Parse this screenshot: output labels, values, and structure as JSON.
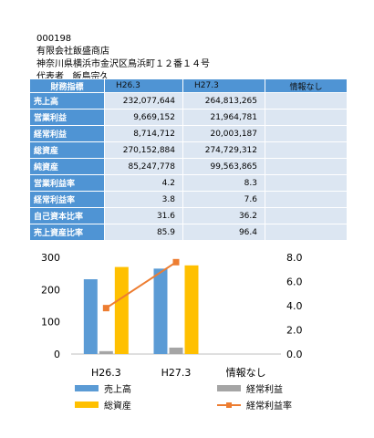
{
  "header": {
    "code": "000198",
    "company": "有限会社飯盛商店",
    "address": "神奈川県横浜市金沢区鳥浜町１２番１４号",
    "rep_label": "代表者",
    "rep_name": "飯島宗久"
  },
  "table": {
    "columns": [
      "財務指標",
      "H26.3",
      "H27.3",
      "情報なし"
    ],
    "rows": [
      {
        "label": "売上高",
        "values": [
          "232,077,644",
          "264,813,265",
          ""
        ]
      },
      {
        "label": "営業利益",
        "values": [
          "9,669,152",
          "21,964,781",
          ""
        ]
      },
      {
        "label": "経常利益",
        "values": [
          "8,714,712",
          "20,003,187",
          ""
        ]
      },
      {
        "label": "総資産",
        "values": [
          "270,152,884",
          "274,729,312",
          ""
        ]
      },
      {
        "label": "純資産",
        "values": [
          "85,247,778",
          "99,563,865",
          ""
        ]
      },
      {
        "label": "営業利益率",
        "values": [
          "4.2",
          "8.3",
          ""
        ]
      },
      {
        "label": "経常利益率",
        "values": [
          "3.8",
          "7.6",
          ""
        ]
      },
      {
        "label": "自己資本比率",
        "values": [
          "31.6",
          "36.2",
          ""
        ]
      },
      {
        "label": "売上資産比率",
        "values": [
          "85.9",
          "96.4",
          ""
        ]
      }
    ]
  },
  "chart_data": {
    "type": "bar",
    "categories": [
      "H26.3",
      "H27.3",
      "情報なし"
    ],
    "series": [
      {
        "name": "売上高",
        "kind": "bar",
        "axis": "left",
        "color": "#5b9bd5",
        "values": [
          232,
          265,
          null
        ]
      },
      {
        "name": "経常利益",
        "kind": "bar",
        "axis": "left",
        "color": "#a5a5a5",
        "values": [
          9,
          20,
          null
        ]
      },
      {
        "name": "総資産",
        "kind": "bar",
        "axis": "left",
        "color": "#ffc000",
        "values": [
          270,
          275,
          null
        ]
      },
      {
        "name": "経常利益率",
        "kind": "line",
        "axis": "right",
        "color": "#ed7d31",
        "values": [
          3.8,
          7.6,
          null
        ]
      }
    ],
    "y_left": {
      "min": 0,
      "max": 300,
      "ticks": [
        "0",
        "100",
        "200",
        "300"
      ]
    },
    "y_right": {
      "min": 0,
      "max": 8,
      "ticks": [
        "0.0",
        "2.0",
        "4.0",
        "6.0",
        "8.0"
      ]
    },
    "legend_position": "bottom",
    "grid": false
  }
}
